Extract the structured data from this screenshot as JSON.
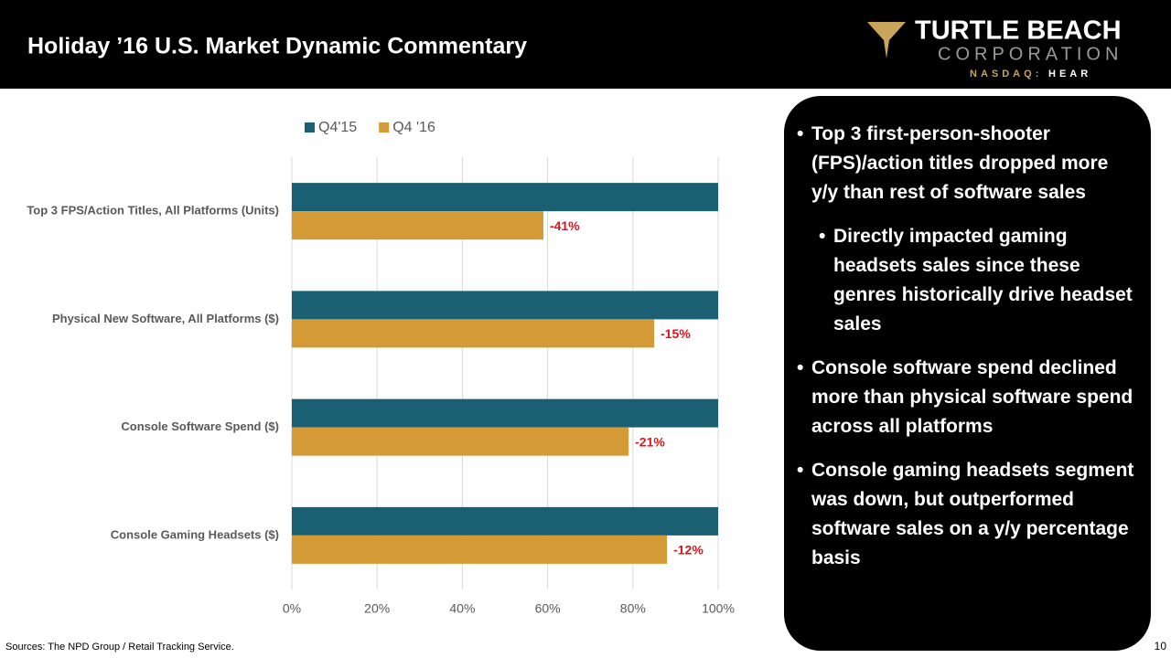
{
  "header": {
    "title": "Holiday ’16 U.S. Market Dynamic Commentary"
  },
  "logo": {
    "name": "TURTLE BEACH",
    "sub": "CORPORATION",
    "exchange": "NASDAQ:",
    "ticker": "HEAR"
  },
  "chart_data": {
    "type": "hbar",
    "categories": [
      "Top 3 FPS/Action Titles, All Platforms (Units)",
      "Physical New Software, All Platforms ($)",
      "Console Software Spend ($)",
      "Console Gaming Headsets ($)"
    ],
    "series": [
      {
        "name": "Q4'15",
        "color": "#1b5f73",
        "values": [
          100,
          100,
          100,
          100
        ]
      },
      {
        "name": "Q4 '16",
        "color": "#d49a36",
        "values": [
          59,
          85,
          79,
          88
        ]
      }
    ],
    "annotations": [
      "-41%",
      "-15%",
      "-21%",
      "-12%"
    ],
    "annotation_color": "#e0141e",
    "xlim": [
      0,
      100
    ],
    "xticks": [
      {
        "value": 0,
        "label": "0%"
      },
      {
        "value": 20,
        "label": "20%"
      },
      {
        "value": 40,
        "label": "40%"
      },
      {
        "value": 60,
        "label": "60%"
      },
      {
        "value": 80,
        "label": "80%"
      },
      {
        "value": 100,
        "label": "100%"
      }
    ],
    "grid": true,
    "legend": "top"
  },
  "commentary": [
    {
      "text": "Top 3 first-person-shooter (FPS)/action titles dropped more y/y than rest of software sales",
      "sub": [
        "Directly impacted gaming headsets sales since these genres historically drive headset sales"
      ]
    },
    {
      "text": "Console software spend declined more than physical software spend across all platforms",
      "sub": []
    },
    {
      "text": "Console gaming headsets segment was down, but outperformed software sales on a y/y percentage basis",
      "sub": []
    }
  ],
  "footer": {
    "source": "Sources: The NPD Group / Retail Tracking Service.",
    "page": "10"
  }
}
